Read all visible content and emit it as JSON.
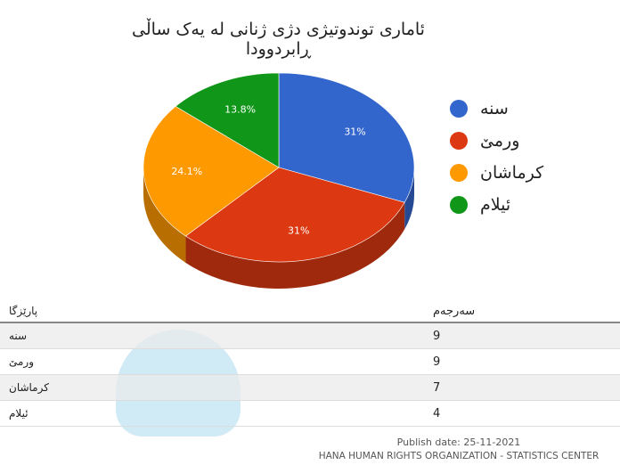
{
  "chart_data": {
    "type": "pie",
    "title": "ئاماری توندوتیژی دژی ژنانی لە یەک ساڵی ڕابردوودا",
    "categories": [
      "سنە",
      "ورمێ",
      "کرماشان",
      "ئیلام"
    ],
    "values": [
      9,
      9,
      7,
      4
    ],
    "data_labels": [
      "31%",
      "31%",
      "24.1%",
      "13.8%"
    ],
    "colors": [
      "#3366cc",
      "#dc3912",
      "#ff9900",
      "#109618"
    ],
    "legend_position": "right",
    "style": "3d"
  },
  "table": {
    "headers": [
      "پارێزگا",
      "سەرجەم"
    ],
    "rows": [
      [
        "سنە",
        "9"
      ],
      [
        "ورمێ",
        "9"
      ],
      [
        "کرماشان",
        "7"
      ],
      [
        "ئیلام",
        "4"
      ]
    ]
  },
  "footer": {
    "publish_date": "Publish date: 25-11-2021",
    "organization": "HANA HUMAN RIGHTS ORGANIZATION - STATISTICS CENTER"
  }
}
